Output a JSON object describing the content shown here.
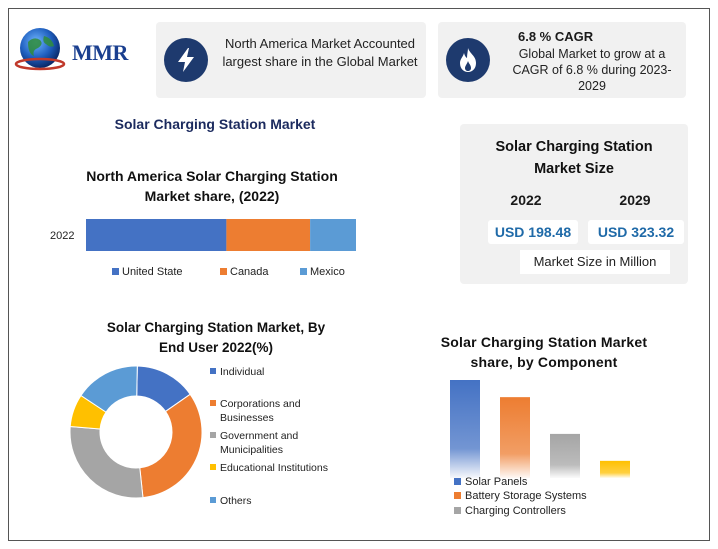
{
  "logo": {
    "text": "MMR"
  },
  "info_cards": [
    {
      "icon": "lightning-icon",
      "text": "North America Market Accounted largest share in the Global Market"
    },
    {
      "icon": "flame-icon",
      "heading": "6.8 % CAGR",
      "text": "Global Market to grow at a CAGR of 6.8 % during 2023-2029"
    }
  ],
  "page_heading": "Solar Charging Station Market",
  "market_size": {
    "title": "Solar Charging Station Market Size",
    "years": [
      "2022",
      "2029"
    ],
    "values": [
      "USD 198.48",
      "USD 323.32"
    ],
    "note": "Market Size in Million"
  },
  "chart_data": [
    {
      "type": "bar",
      "orientation": "horizontal-stacked",
      "title": "North America Solar Charging Station Market share, (2022)",
      "categories": [
        "2022"
      ],
      "series": [
        {
          "name": "United State",
          "values": [
            52
          ],
          "color": "#4472c4"
        },
        {
          "name": "Canada",
          "values": [
            31
          ],
          "color": "#ed7d31"
        },
        {
          "name": "Mexico",
          "values": [
            17
          ],
          "color": "#5b9bd5"
        }
      ],
      "legend": "bottom"
    },
    {
      "type": "pie",
      "variant": "donut",
      "title": "Solar Charging Station Market, By End User 2022(%)",
      "labels": [
        "Individual",
        "Corporations and Businesses",
        "Government and Municipalities",
        "Educational Institutions",
        "Others"
      ],
      "values": [
        15,
        33,
        28,
        8,
        16
      ],
      "colors": [
        "#4472c4",
        "#ed7d31",
        "#a5a5a5",
        "#ffc000",
        "#5b9bd5"
      ],
      "legend": "right"
    },
    {
      "type": "bar",
      "title": "Solar Charging Station Market share, by Component",
      "categories": [
        "Solar Panels",
        "Battery Storage Systems",
        "Charging Controllers",
        ""
      ],
      "values": [
        40,
        33,
        18,
        7
      ],
      "colors": [
        "#4472c4",
        "#ed7d31",
        "#a5a5a5",
        "#ffc000"
      ],
      "legend": "bottom-left"
    }
  ]
}
